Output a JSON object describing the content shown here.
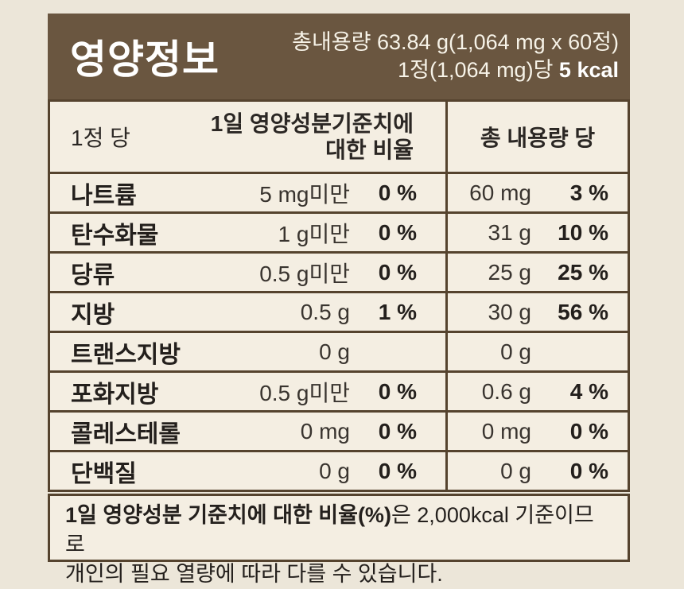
{
  "header": {
    "title": "영양정보",
    "total_content": "총내용량 63.84 g(1,064 mg x 60정)",
    "per_tablet_prefix": "1정(1,064 mg)당 ",
    "per_tablet_kcal": "5 kcal"
  },
  "table": {
    "col_headers": {
      "per_tablet": "1정 당",
      "daily_value_line1": "1일 영양성분기준치에",
      "daily_value_line2": "대한 비율",
      "total_content": "총 내용량 당"
    },
    "rows": [
      {
        "name": "나트륨",
        "per_amount": "5 mg미만",
        "per_percent": "0 %",
        "total_amount": "60 mg",
        "total_percent": "3 %"
      },
      {
        "name": "탄수화물",
        "per_amount": "1 g미만",
        "per_percent": "0 %",
        "total_amount": "31 g",
        "total_percent": "10 %"
      },
      {
        "name": "당류",
        "per_amount": "0.5 g미만",
        "per_percent": "0 %",
        "total_amount": "25 g",
        "total_percent": "25 %"
      },
      {
        "name": "지방",
        "per_amount": "0.5 g",
        "per_percent": "1 %",
        "total_amount": "30 g",
        "total_percent": "56 %"
      },
      {
        "name": "트랜스지방",
        "per_amount": "0 g",
        "per_percent": "",
        "total_amount": "0 g",
        "total_percent": ""
      },
      {
        "name": "포화지방",
        "per_amount": "0.5 g미만",
        "per_percent": "0 %",
        "total_amount": "0.6 g",
        "total_percent": "4 %"
      },
      {
        "name": "콜레스테롤",
        "per_amount": "0 mg",
        "per_percent": "0 %",
        "total_amount": "0 mg",
        "total_percent": "0 %"
      },
      {
        "name": "단백질",
        "per_amount": "0 g",
        "per_percent": "0 %",
        "total_amount": "0 g",
        "total_percent": "0 %"
      }
    ]
  },
  "footnote": {
    "line1_bold": "1일 영양성분 기준치에 대한 비율(%)",
    "line1_rest": "은 2,000kcal 기준이므로",
    "line2": "개인의 필요 열량에 따라 다를  수 있습니다."
  },
  "colors": {
    "header_background": "#6a5640",
    "border": "#55432e",
    "panel_background": "#f4eee2",
    "page_background": "#ece6d9",
    "header_text": "#f7f3e8",
    "text": "#2b2724"
  }
}
